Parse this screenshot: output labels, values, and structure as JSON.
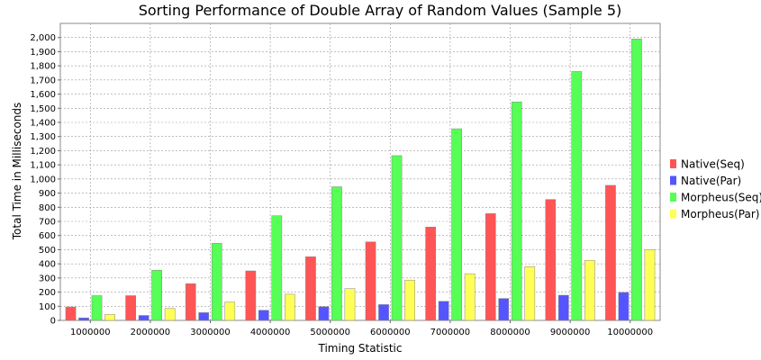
{
  "chart_data": {
    "type": "bar",
    "title": "Sorting Performance of Double Array of Random Values (Sample 5)",
    "xlabel": "Timing Statistic",
    "ylabel": "Total Time in Milliseconds",
    "ylim": [
      0,
      2100
    ],
    "yticks": [
      0,
      100,
      200,
      300,
      400,
      500,
      600,
      700,
      800,
      900,
      1000,
      1100,
      1200,
      1300,
      1400,
      1500,
      1600,
      1700,
      1800,
      1900,
      2000
    ],
    "ytick_labels": [
      "0",
      "100",
      "200",
      "300",
      "400",
      "500",
      "600",
      "700",
      "800",
      "900",
      "1,000",
      "1,100",
      "1,200",
      "1,300",
      "1,400",
      "1,500",
      "1,600",
      "1,700",
      "1,800",
      "1,900",
      "2,000"
    ],
    "grid": true,
    "legend_position": "right",
    "categories": [
      "1000000",
      "2000000",
      "3000000",
      "4000000",
      "5000000",
      "6000000",
      "7000000",
      "8000000",
      "9000000",
      "10000000"
    ],
    "series": [
      {
        "name": "Native(Seq)",
        "color": "#ff5555",
        "values": [
          95,
          175,
          260,
          350,
          450,
          555,
          660,
          755,
          855,
          955
        ]
      },
      {
        "name": "Native(Par)",
        "color": "#5555ff",
        "values": [
          18,
          35,
          55,
          72,
          97,
          112,
          135,
          155,
          178,
          198
        ]
      },
      {
        "name": "Morpheus(Seq)",
        "color": "#55ff55",
        "values": [
          175,
          355,
          545,
          740,
          945,
          1165,
          1355,
          1545,
          1760,
          1990
        ]
      },
      {
        "name": "Morpheus(Par)",
        "color": "#ffff55",
        "values": [
          42,
          85,
          130,
          185,
          225,
          285,
          330,
          380,
          425,
          500
        ]
      }
    ]
  }
}
